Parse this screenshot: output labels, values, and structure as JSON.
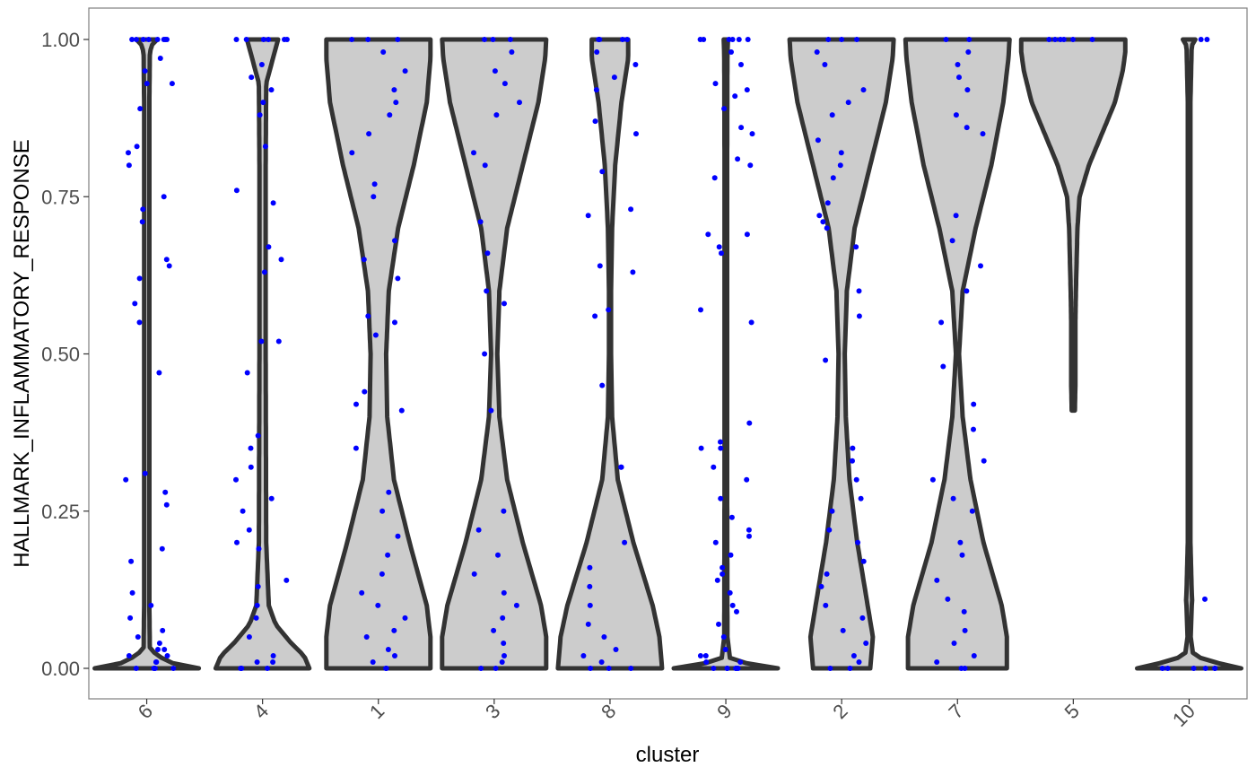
{
  "chart_data": {
    "type": "violin",
    "xlabel": "cluster",
    "ylabel": "HALLMARK_INFLAMMATORY_RESPONSE",
    "ylim": [
      0,
      1
    ],
    "y_ticks": [
      "0.00",
      "0.25",
      "0.50",
      "0.75",
      "1.00"
    ],
    "y_tick_values": [
      0,
      0.25,
      0.5,
      0.75,
      1.0
    ],
    "categories": [
      "6",
      "4",
      "1",
      "3",
      "8",
      "9",
      "2",
      "7",
      "5",
      "10"
    ],
    "grid": false,
    "x_tick_label_rotation": "45 degrees",
    "colors": {
      "violin_fill": "#cccccc",
      "violin_outline": "#333333",
      "point": "#0000ff",
      "axis_text": "#4d4d4d",
      "panel_border": "#7f7f7f"
    },
    "series": [
      {
        "category": "6",
        "range": [
          0,
          1
        ],
        "density": [
          [
            0,
            1.0
          ],
          [
            0.01,
            0.4
          ],
          [
            0.03,
            0.06
          ],
          [
            0.1,
            0.05
          ],
          [
            0.3,
            0.05
          ],
          [
            0.5,
            0.05
          ],
          [
            0.7,
            0.05
          ],
          [
            0.9,
            0.05
          ],
          [
            0.98,
            0.06
          ],
          [
            0.995,
            0.12
          ],
          [
            1,
            0.2
          ]
        ],
        "points": [
          0,
          0,
          0,
          0,
          0.01,
          0.01,
          0.02,
          0.02,
          0.03,
          0.03,
          0.04,
          0.05,
          0.06,
          0.08,
          0.1,
          0.12,
          0.17,
          0.19,
          0.26,
          0.28,
          0.3,
          0.31,
          0.47,
          0.55,
          0.58,
          0.62,
          0.64,
          0.65,
          0.71,
          0.73,
          0.75,
          0.8,
          0.82,
          0.83,
          0.89,
          0.93,
          0.93,
          0.95,
          0.97,
          1,
          1,
          1,
          1,
          1,
          1,
          1,
          1
        ]
      },
      {
        "category": "4",
        "range": [
          0,
          1
        ],
        "density": [
          [
            0,
            0.9
          ],
          [
            0.02,
            0.8
          ],
          [
            0.04,
            0.55
          ],
          [
            0.07,
            0.25
          ],
          [
            0.1,
            0.12
          ],
          [
            0.2,
            0.07
          ],
          [
            0.5,
            0.06
          ],
          [
            0.8,
            0.06
          ],
          [
            0.93,
            0.07
          ],
          [
            0.97,
            0.2
          ],
          [
            1,
            0.3
          ]
        ],
        "points": [
          0,
          0,
          0,
          0.01,
          0.01,
          0.02,
          0.05,
          0.08,
          0.1,
          0.13,
          0.14,
          0.19,
          0.2,
          0.22,
          0.25,
          0.27,
          0.3,
          0.32,
          0.35,
          0.37,
          0.47,
          0.52,
          0.52,
          0.63,
          0.65,
          0.67,
          0.74,
          0.76,
          0.83,
          0.88,
          0.9,
          0.92,
          0.94,
          0.96,
          1,
          1,
          1,
          1,
          1,
          1
        ]
      },
      {
        "category": "1",
        "range": [
          0,
          1
        ],
        "density": [
          [
            0,
            1.0
          ],
          [
            0.05,
            1.0
          ],
          [
            0.1,
            0.93
          ],
          [
            0.2,
            0.6
          ],
          [
            0.3,
            0.3
          ],
          [
            0.4,
            0.17
          ],
          [
            0.5,
            0.15
          ],
          [
            0.6,
            0.2
          ],
          [
            0.7,
            0.38
          ],
          [
            0.8,
            0.68
          ],
          [
            0.9,
            0.93
          ],
          [
            0.97,
            1.0
          ],
          [
            1,
            1.0
          ]
        ],
        "points": [
          0,
          0,
          0.01,
          0.02,
          0.03,
          0.05,
          0.06,
          0.08,
          0.1,
          0.12,
          0.15,
          0.18,
          0.21,
          0.25,
          0.28,
          0.35,
          0.41,
          0.42,
          0.44,
          0.53,
          0.55,
          0.56,
          0.62,
          0.65,
          0.68,
          0.75,
          0.77,
          0.82,
          0.85,
          0.88,
          0.9,
          0.92,
          0.95,
          0.98,
          1,
          1,
          1
        ]
      },
      {
        "category": "3",
        "range": [
          0,
          1
        ],
        "density": [
          [
            0,
            1.0
          ],
          [
            0.05,
            1.0
          ],
          [
            0.1,
            0.9
          ],
          [
            0.2,
            0.55
          ],
          [
            0.3,
            0.25
          ],
          [
            0.4,
            0.1
          ],
          [
            0.5,
            0.06
          ],
          [
            0.6,
            0.1
          ],
          [
            0.7,
            0.25
          ],
          [
            0.8,
            0.55
          ],
          [
            0.9,
            0.85
          ],
          [
            0.97,
            0.98
          ],
          [
            1,
            1.0
          ]
        ],
        "points": [
          0,
          0,
          0.01,
          0.02,
          0.04,
          0.06,
          0.08,
          0.1,
          0.12,
          0.15,
          0.18,
          0.22,
          0.25,
          0.41,
          0.5,
          0.58,
          0.6,
          0.66,
          0.71,
          0.8,
          0.82,
          0.88,
          0.9,
          0.93,
          0.95,
          0.98,
          1,
          1,
          1
        ]
      },
      {
        "category": "8",
        "range": [
          0,
          1
        ],
        "density": [
          [
            0,
            1.0
          ],
          [
            0.05,
            0.95
          ],
          [
            0.1,
            0.82
          ],
          [
            0.2,
            0.45
          ],
          [
            0.3,
            0.15
          ],
          [
            0.4,
            0.04
          ],
          [
            0.5,
            0.02
          ],
          [
            0.6,
            0.02
          ],
          [
            0.7,
            0.04
          ],
          [
            0.8,
            0.1
          ],
          [
            0.9,
            0.22
          ],
          [
            0.97,
            0.35
          ],
          [
            1,
            0.35
          ]
        ],
        "points": [
          0,
          0,
          0,
          0.01,
          0.02,
          0.03,
          0.05,
          0.07,
          0.1,
          0.13,
          0.16,
          0.2,
          0.32,
          0.32,
          0.45,
          0.56,
          0.57,
          0.63,
          0.64,
          0.72,
          0.73,
          0.79,
          0.85,
          0.87,
          0.92,
          0.94,
          0.96,
          0.98,
          1,
          1,
          1,
          1
        ]
      },
      {
        "category": "9",
        "range": [
          0,
          1
        ],
        "density": [
          [
            0,
            1.0
          ],
          [
            0.005,
            0.55
          ],
          [
            0.015,
            0.08
          ],
          [
            0.05,
            0.03
          ],
          [
            0.3,
            0.025
          ],
          [
            0.5,
            0.025
          ],
          [
            0.8,
            0.025
          ],
          [
            0.97,
            0.03
          ],
          [
            1,
            0.04
          ]
        ],
        "points": [
          0,
          0,
          0,
          0,
          0,
          0,
          0.01,
          0.01,
          0.02,
          0.02,
          0.03,
          0.05,
          0.07,
          0.09,
          0.1,
          0.12,
          0.14,
          0.15,
          0.16,
          0.18,
          0.2,
          0.21,
          0.22,
          0.24,
          0.27,
          0.3,
          0.32,
          0.35,
          0.35,
          0.36,
          0.39,
          0.55,
          0.57,
          0.66,
          0.67,
          0.69,
          0.69,
          0.78,
          0.8,
          0.81,
          0.85,
          0.86,
          0.89,
          0.91,
          0.92,
          0.93,
          0.96,
          0.98,
          1,
          1,
          1,
          1,
          1,
          1
        ]
      },
      {
        "category": "2",
        "range": [
          0,
          1
        ],
        "density": [
          [
            0,
            0.55
          ],
          [
            0.05,
            0.6
          ],
          [
            0.1,
            0.5
          ],
          [
            0.2,
            0.3
          ],
          [
            0.3,
            0.15
          ],
          [
            0.4,
            0.08
          ],
          [
            0.5,
            0.06
          ],
          [
            0.6,
            0.1
          ],
          [
            0.7,
            0.25
          ],
          [
            0.8,
            0.55
          ],
          [
            0.9,
            0.85
          ],
          [
            0.97,
            0.98
          ],
          [
            1,
            1.0
          ]
        ],
        "points": [
          0,
          0,
          0.01,
          0.02,
          0.04,
          0.06,
          0.08,
          0.1,
          0.13,
          0.15,
          0.17,
          0.2,
          0.22,
          0.25,
          0.27,
          0.3,
          0.33,
          0.35,
          0.49,
          0.56,
          0.6,
          0.67,
          0.7,
          0.71,
          0.72,
          0.74,
          0.78,
          0.8,
          0.82,
          0.84,
          0.88,
          0.9,
          0.92,
          0.96,
          0.98,
          1,
          1,
          1
        ]
      },
      {
        "category": "7",
        "range": [
          0,
          1
        ],
        "density": [
          [
            0,
            0.95
          ],
          [
            0.05,
            0.95
          ],
          [
            0.1,
            0.85
          ],
          [
            0.2,
            0.5
          ],
          [
            0.3,
            0.25
          ],
          [
            0.4,
            0.1
          ],
          [
            0.5,
            0.03
          ],
          [
            0.6,
            0.1
          ],
          [
            0.7,
            0.35
          ],
          [
            0.8,
            0.65
          ],
          [
            0.9,
            0.88
          ],
          [
            0.97,
            0.98
          ],
          [
            1,
            1.0
          ]
        ],
        "points": [
          0,
          0,
          0.01,
          0.02,
          0.04,
          0.06,
          0.09,
          0.11,
          0.14,
          0.18,
          0.2,
          0.25,
          0.27,
          0.3,
          0.33,
          0.38,
          0.42,
          0.48,
          0.55,
          0.6,
          0.64,
          0.68,
          0.72,
          0.85,
          0.86,
          0.88,
          0.92,
          0.94,
          0.96,
          0.98,
          1,
          1
        ]
      },
      {
        "category": "5",
        "range": [
          0.41,
          1
        ],
        "density": [
          [
            0.41,
            0.03
          ],
          [
            0.45,
            0.04
          ],
          [
            0.5,
            0.04
          ],
          [
            0.55,
            0.04
          ],
          [
            0.6,
            0.05
          ],
          [
            0.7,
            0.08
          ],
          [
            0.75,
            0.12
          ],
          [
            0.8,
            0.3
          ],
          [
            0.85,
            0.55
          ],
          [
            0.9,
            0.8
          ],
          [
            0.95,
            0.95
          ],
          [
            0.98,
            1.0
          ],
          [
            1,
            1.0
          ]
        ],
        "points": [
          1,
          1,
          1,
          1,
          1,
          1
        ]
      },
      {
        "category": "10",
        "range": [
          0,
          1
        ],
        "density": [
          [
            0,
            1.0
          ],
          [
            0.005,
            0.7
          ],
          [
            0.02,
            0.08
          ],
          [
            0.05,
            0.03
          ],
          [
            0.1,
            0.05
          ],
          [
            0.11,
            0.06
          ],
          [
            0.12,
            0.05
          ],
          [
            0.2,
            0.025
          ],
          [
            0.5,
            0.025
          ],
          [
            0.9,
            0.025
          ],
          [
            0.99,
            0.05
          ],
          [
            1,
            0.12
          ]
        ],
        "points": [
          0,
          0,
          0,
          0,
          0,
          0,
          0.11,
          1,
          1
        ]
      }
    ]
  }
}
